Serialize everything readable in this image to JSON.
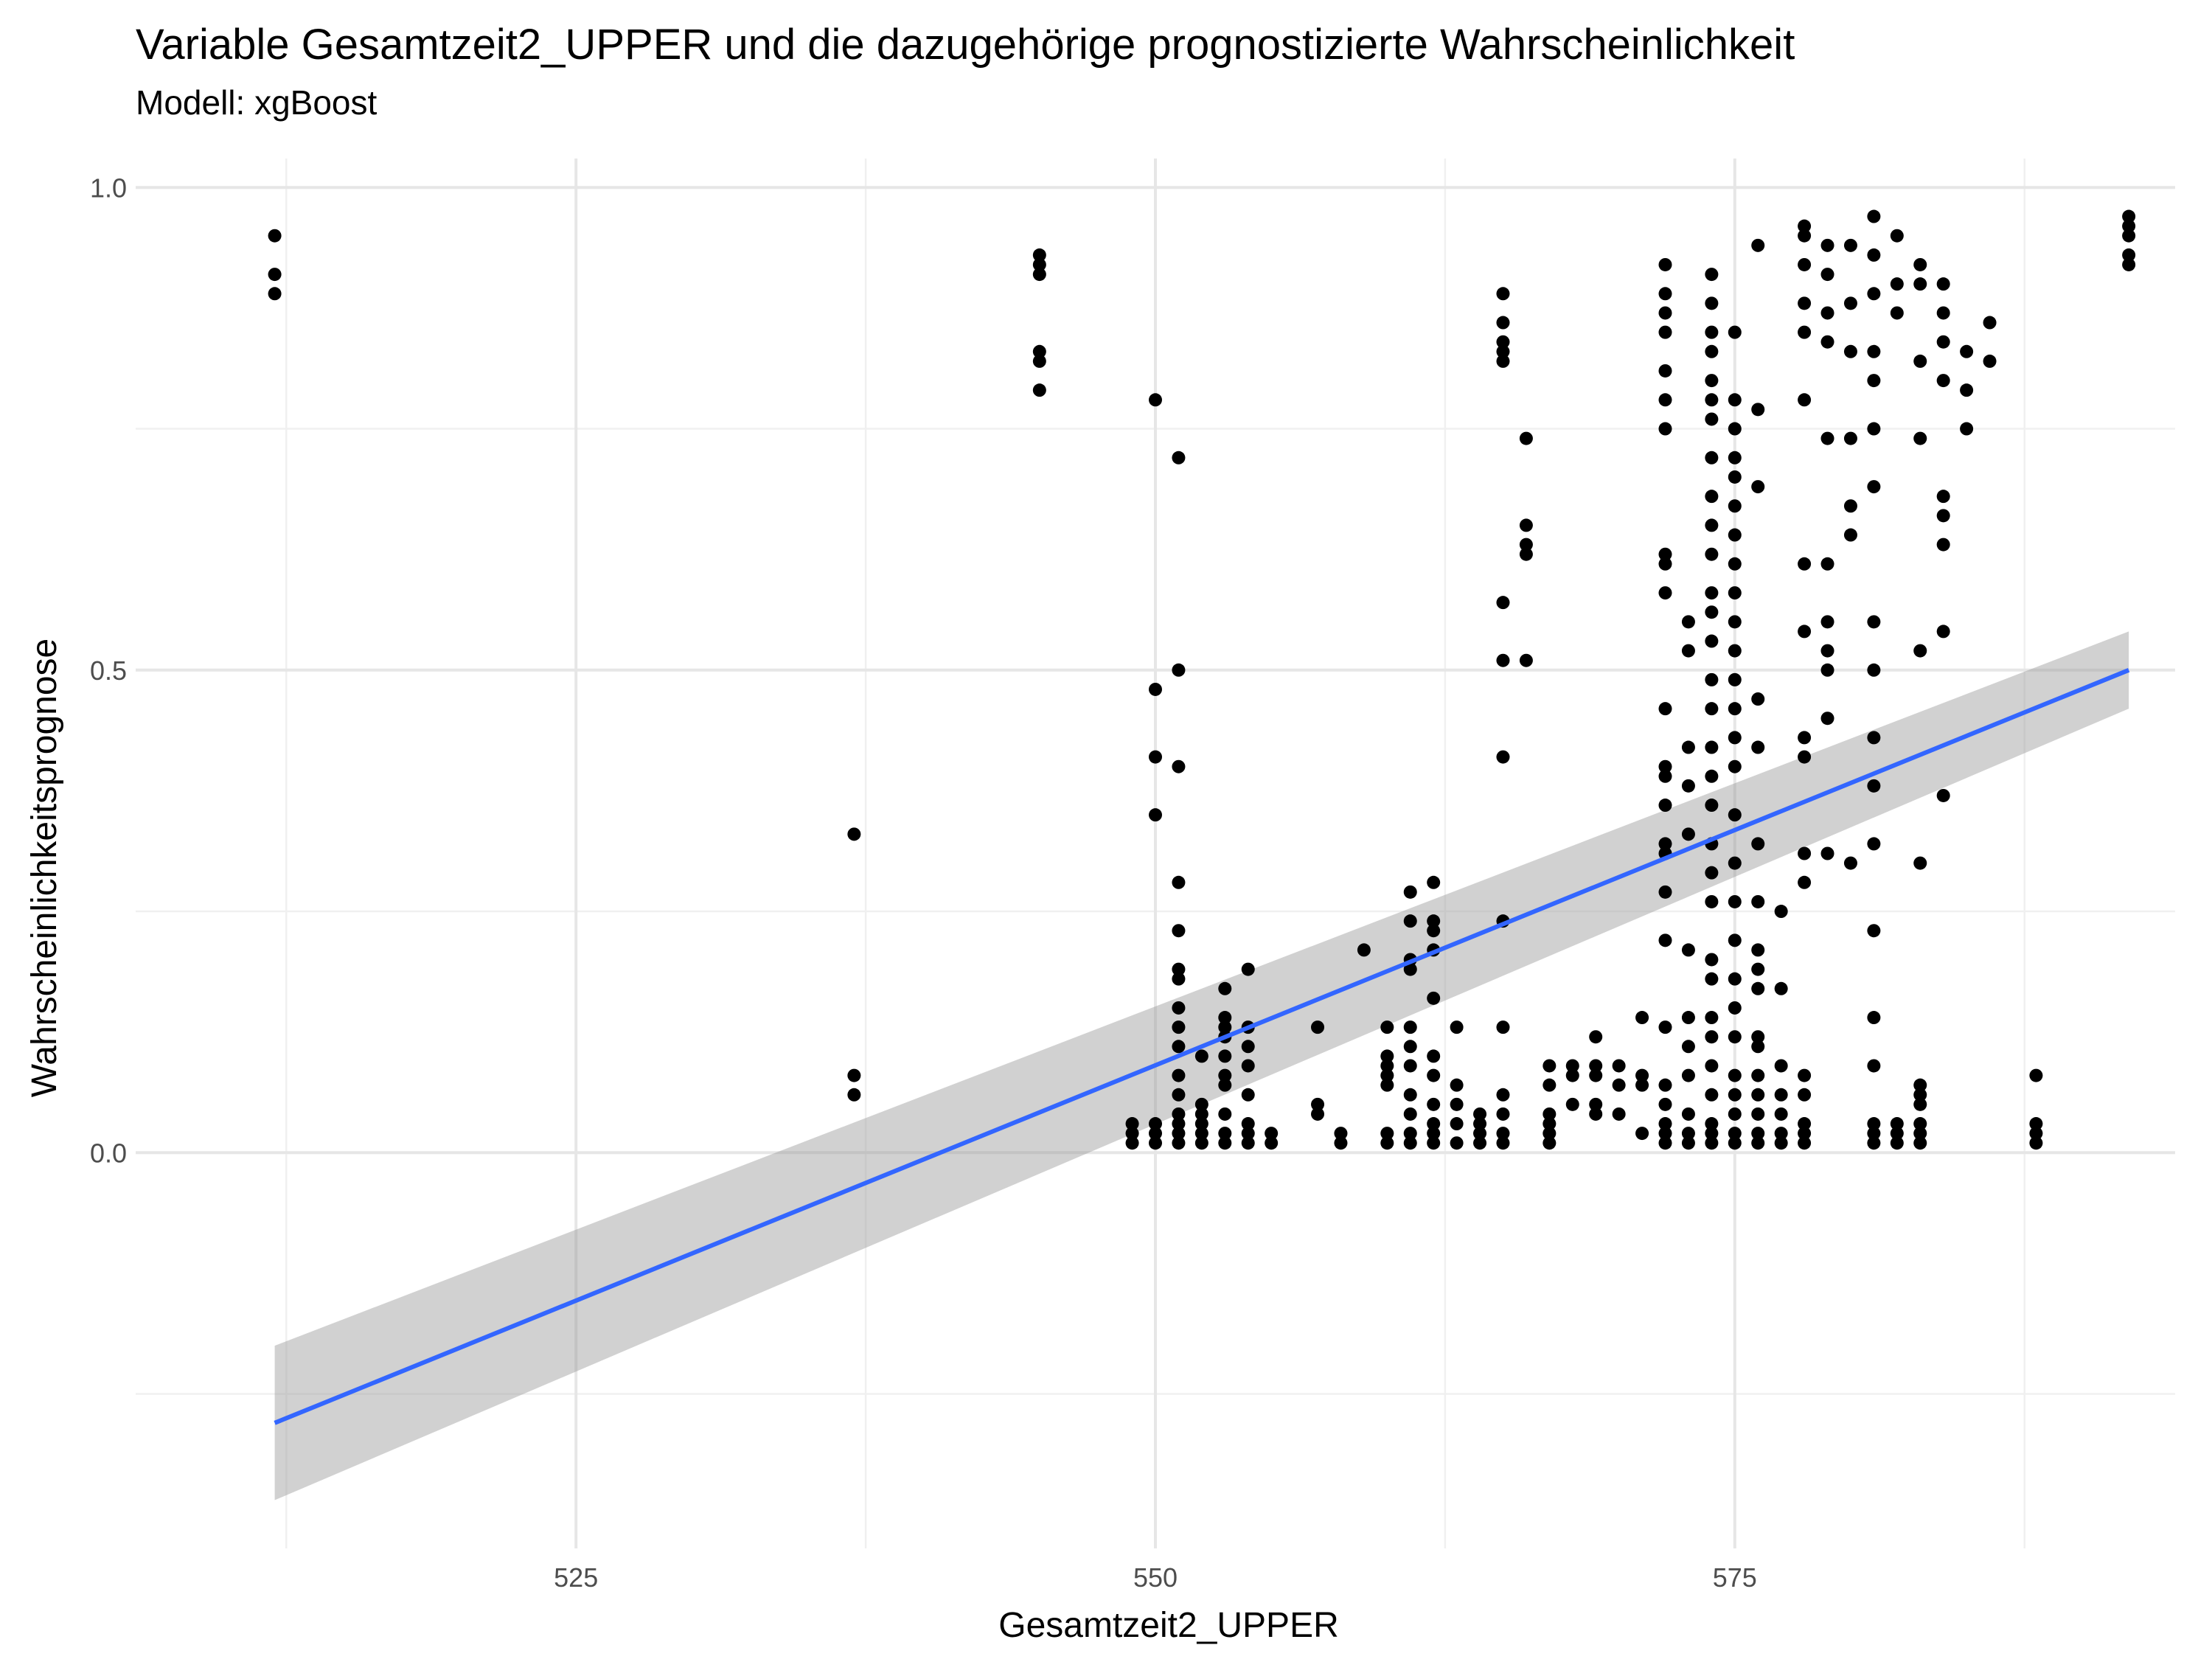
{
  "chart_data": {
    "type": "scatter",
    "title": "Variable Gesamtzeit2_UPPER und die dazugehörige prognostizierte Wahrscheinlichkeit",
    "subtitle": "Modell: xgBoost",
    "xlabel": "Gesamtzeit2_UPPER",
    "ylabel": "Wahrscheinlichkeitsprognose",
    "xlim": [
      506,
      594
    ],
    "ylim": [
      -0.41,
      1.03
    ],
    "x_ticks": [
      525,
      550,
      575
    ],
    "x_tick_labels": [
      "525",
      "550",
      "575"
    ],
    "y_ticks": [
      0.0,
      0.5,
      1.0
    ],
    "y_tick_labels": [
      "0.0",
      "0.5",
      "1.0"
    ],
    "grid": true,
    "legend": "none",
    "point_color": "#000000",
    "trend": {
      "method": "linear",
      "color": "#3366FF",
      "ribbon_color": "#999999",
      "x": [
        512,
        592
      ],
      "y": [
        -0.28,
        0.5
      ],
      "ci_upper": [
        -0.2,
        0.54
      ],
      "ci_lower": [
        -0.36,
        0.46
      ]
    },
    "points": [
      [
        512,
        0.95
      ],
      [
        512,
        0.91
      ],
      [
        512,
        0.89
      ],
      [
        537,
        0.33
      ],
      [
        537,
        0.08
      ],
      [
        537,
        0.06
      ],
      [
        545,
        0.93
      ],
      [
        545,
        0.92
      ],
      [
        545,
        0.91
      ],
      [
        545,
        0.83
      ],
      [
        545,
        0.82
      ],
      [
        545,
        0.79
      ],
      [
        549,
        0.03
      ],
      [
        549,
        0.02
      ],
      [
        549,
        0.01
      ],
      [
        550,
        0.78
      ],
      [
        550,
        0.48
      ],
      [
        550,
        0.41
      ],
      [
        550,
        0.35
      ],
      [
        550,
        0.03
      ],
      [
        550,
        0.02
      ],
      [
        550,
        0.01
      ],
      [
        551,
        0.72
      ],
      [
        551,
        0.5
      ],
      [
        551,
        0.4
      ],
      [
        551,
        0.28
      ],
      [
        551,
        0.23
      ],
      [
        551,
        0.19
      ],
      [
        551,
        0.18
      ],
      [
        551,
        0.15
      ],
      [
        551,
        0.13
      ],
      [
        551,
        0.11
      ],
      [
        551,
        0.08
      ],
      [
        551,
        0.06
      ],
      [
        551,
        0.04
      ],
      [
        551,
        0.03
      ],
      [
        551,
        0.02
      ],
      [
        551,
        0.01
      ],
      [
        552,
        0.1
      ],
      [
        552,
        0.05
      ],
      [
        552,
        0.04
      ],
      [
        552,
        0.03
      ],
      [
        552,
        0.02
      ],
      [
        552,
        0.01
      ],
      [
        553,
        0.17
      ],
      [
        553,
        0.14
      ],
      [
        553,
        0.13
      ],
      [
        553,
        0.12
      ],
      [
        553,
        0.1
      ],
      [
        553,
        0.08
      ],
      [
        553,
        0.07
      ],
      [
        553,
        0.04
      ],
      [
        553,
        0.02
      ],
      [
        553,
        0.01
      ],
      [
        554,
        0.19
      ],
      [
        554,
        0.13
      ],
      [
        554,
        0.11
      ],
      [
        554,
        0.09
      ],
      [
        554,
        0.06
      ],
      [
        554,
        0.03
      ],
      [
        554,
        0.02
      ],
      [
        554,
        0.01
      ],
      [
        555,
        0.02
      ],
      [
        555,
        0.01
      ],
      [
        557,
        0.13
      ],
      [
        557,
        0.05
      ],
      [
        557,
        0.04
      ],
      [
        558,
        0.02
      ],
      [
        558,
        0.01
      ],
      [
        559,
        0.21
      ],
      [
        560,
        0.13
      ],
      [
        560,
        0.1
      ],
      [
        560,
        0.09
      ],
      [
        560,
        0.08
      ],
      [
        560,
        0.07
      ],
      [
        560,
        0.02
      ],
      [
        560,
        0.01
      ],
      [
        561,
        0.27
      ],
      [
        561,
        0.24
      ],
      [
        561,
        0.2
      ],
      [
        561,
        0.19
      ],
      [
        561,
        0.13
      ],
      [
        561,
        0.11
      ],
      [
        561,
        0.09
      ],
      [
        561,
        0.06
      ],
      [
        561,
        0.04
      ],
      [
        561,
        0.02
      ],
      [
        561,
        0.01
      ],
      [
        562,
        0.28
      ],
      [
        562,
        0.24
      ],
      [
        562,
        0.23
      ],
      [
        562,
        0.21
      ],
      [
        562,
        0.16
      ],
      [
        562,
        0.1
      ],
      [
        562,
        0.08
      ],
      [
        562,
        0.05
      ],
      [
        562,
        0.03
      ],
      [
        562,
        0.02
      ],
      [
        562,
        0.01
      ],
      [
        563,
        0.13
      ],
      [
        563,
        0.07
      ],
      [
        563,
        0.05
      ],
      [
        563,
        0.03
      ],
      [
        563,
        0.01
      ],
      [
        564,
        0.04
      ],
      [
        564,
        0.03
      ],
      [
        564,
        0.02
      ],
      [
        564,
        0.01
      ],
      [
        565,
        0.89
      ],
      [
        565,
        0.86
      ],
      [
        565,
        0.84
      ],
      [
        565,
        0.83
      ],
      [
        565,
        0.82
      ],
      [
        565,
        0.57
      ],
      [
        565,
        0.51
      ],
      [
        565,
        0.41
      ],
      [
        565,
        0.24
      ],
      [
        565,
        0.13
      ],
      [
        565,
        0.06
      ],
      [
        565,
        0.04
      ],
      [
        565,
        0.02
      ],
      [
        565,
        0.01
      ],
      [
        566,
        0.74
      ],
      [
        566,
        0.65
      ],
      [
        566,
        0.63
      ],
      [
        566,
        0.62
      ],
      [
        566,
        0.51
      ],
      [
        567,
        0.09
      ],
      [
        567,
        0.07
      ],
      [
        567,
        0.04
      ],
      [
        567,
        0.03
      ],
      [
        567,
        0.02
      ],
      [
        567,
        0.01
      ],
      [
        568,
        0.09
      ],
      [
        568,
        0.08
      ],
      [
        568,
        0.05
      ],
      [
        569,
        0.12
      ],
      [
        569,
        0.09
      ],
      [
        569,
        0.08
      ],
      [
        569,
        0.05
      ],
      [
        569,
        0.04
      ],
      [
        570,
        0.09
      ],
      [
        570,
        0.07
      ],
      [
        570,
        0.04
      ],
      [
        571,
        0.14
      ],
      [
        571,
        0.08
      ],
      [
        571,
        0.07
      ],
      [
        571,
        0.02
      ],
      [
        572,
        0.92
      ],
      [
        572,
        0.89
      ],
      [
        572,
        0.87
      ],
      [
        572,
        0.85
      ],
      [
        572,
        0.81
      ],
      [
        572,
        0.78
      ],
      [
        572,
        0.75
      ],
      [
        572,
        0.62
      ],
      [
        572,
        0.61
      ],
      [
        572,
        0.58
      ],
      [
        572,
        0.46
      ],
      [
        572,
        0.4
      ],
      [
        572,
        0.39
      ],
      [
        572,
        0.36
      ],
      [
        572,
        0.32
      ],
      [
        572,
        0.31
      ],
      [
        572,
        0.27
      ],
      [
        572,
        0.22
      ],
      [
        572,
        0.13
      ],
      [
        572,
        0.07
      ],
      [
        572,
        0.05
      ],
      [
        572,
        0.03
      ],
      [
        572,
        0.02
      ],
      [
        572,
        0.01
      ],
      [
        573,
        0.55
      ],
      [
        573,
        0.52
      ],
      [
        573,
        0.42
      ],
      [
        573,
        0.38
      ],
      [
        573,
        0.33
      ],
      [
        573,
        0.21
      ],
      [
        573,
        0.14
      ],
      [
        573,
        0.11
      ],
      [
        573,
        0.08
      ],
      [
        573,
        0.04
      ],
      [
        573,
        0.02
      ],
      [
        573,
        0.01
      ],
      [
        574,
        0.91
      ],
      [
        574,
        0.88
      ],
      [
        574,
        0.85
      ],
      [
        574,
        0.83
      ],
      [
        574,
        0.8
      ],
      [
        574,
        0.78
      ],
      [
        574,
        0.76
      ],
      [
        574,
        0.72
      ],
      [
        574,
        0.68
      ],
      [
        574,
        0.65
      ],
      [
        574,
        0.62
      ],
      [
        574,
        0.58
      ],
      [
        574,
        0.56
      ],
      [
        574,
        0.53
      ],
      [
        574,
        0.49
      ],
      [
        574,
        0.46
      ],
      [
        574,
        0.42
      ],
      [
        574,
        0.39
      ],
      [
        574,
        0.36
      ],
      [
        574,
        0.32
      ],
      [
        574,
        0.29
      ],
      [
        574,
        0.26
      ],
      [
        574,
        0.2
      ],
      [
        574,
        0.18
      ],
      [
        574,
        0.14
      ],
      [
        574,
        0.12
      ],
      [
        574,
        0.09
      ],
      [
        574,
        0.06
      ],
      [
        574,
        0.03
      ],
      [
        574,
        0.02
      ],
      [
        574,
        0.01
      ],
      [
        575,
        0.85
      ],
      [
        575,
        0.78
      ],
      [
        575,
        0.75
      ],
      [
        575,
        0.72
      ],
      [
        575,
        0.7
      ],
      [
        575,
        0.67
      ],
      [
        575,
        0.64
      ],
      [
        575,
        0.61
      ],
      [
        575,
        0.58
      ],
      [
        575,
        0.55
      ],
      [
        575,
        0.52
      ],
      [
        575,
        0.49
      ],
      [
        575,
        0.46
      ],
      [
        575,
        0.43
      ],
      [
        575,
        0.4
      ],
      [
        575,
        0.35
      ],
      [
        575,
        0.3
      ],
      [
        575,
        0.26
      ],
      [
        575,
        0.22
      ],
      [
        575,
        0.18
      ],
      [
        575,
        0.15
      ],
      [
        575,
        0.12
      ],
      [
        575,
        0.08
      ],
      [
        575,
        0.06
      ],
      [
        575,
        0.04
      ],
      [
        575,
        0.02
      ],
      [
        575,
        0.01
      ],
      [
        576,
        0.94
      ],
      [
        576,
        0.77
      ],
      [
        576,
        0.69
      ],
      [
        576,
        0.47
      ],
      [
        576,
        0.42
      ],
      [
        576,
        0.32
      ],
      [
        576,
        0.26
      ],
      [
        576,
        0.21
      ],
      [
        576,
        0.19
      ],
      [
        576,
        0.17
      ],
      [
        576,
        0.12
      ],
      [
        576,
        0.11
      ],
      [
        576,
        0.08
      ],
      [
        576,
        0.06
      ],
      [
        576,
        0.04
      ],
      [
        576,
        0.02
      ],
      [
        576,
        0.01
      ],
      [
        577,
        0.25
      ],
      [
        577,
        0.17
      ],
      [
        577,
        0.09
      ],
      [
        577,
        0.06
      ],
      [
        577,
        0.04
      ],
      [
        577,
        0.02
      ],
      [
        577,
        0.01
      ],
      [
        578,
        0.96
      ],
      [
        578,
        0.95
      ],
      [
        578,
        0.92
      ],
      [
        578,
        0.88
      ],
      [
        578,
        0.85
      ],
      [
        578,
        0.78
      ],
      [
        578,
        0.61
      ],
      [
        578,
        0.54
      ],
      [
        578,
        0.43
      ],
      [
        578,
        0.41
      ],
      [
        578,
        0.31
      ],
      [
        578,
        0.28
      ],
      [
        578,
        0.08
      ],
      [
        578,
        0.06
      ],
      [
        578,
        0.03
      ],
      [
        578,
        0.02
      ],
      [
        578,
        0.01
      ],
      [
        579,
        0.94
      ],
      [
        579,
        0.91
      ],
      [
        579,
        0.87
      ],
      [
        579,
        0.84
      ],
      [
        579,
        0.74
      ],
      [
        579,
        0.61
      ],
      [
        579,
        0.55
      ],
      [
        579,
        0.52
      ],
      [
        579,
        0.5
      ],
      [
        579,
        0.45
      ],
      [
        579,
        0.31
      ],
      [
        580,
        0.94
      ],
      [
        580,
        0.88
      ],
      [
        580,
        0.83
      ],
      [
        580,
        0.74
      ],
      [
        580,
        0.67
      ],
      [
        580,
        0.64
      ],
      [
        580,
        0.3
      ],
      [
        581,
        0.97
      ],
      [
        581,
        0.93
      ],
      [
        581,
        0.89
      ],
      [
        581,
        0.83
      ],
      [
        581,
        0.8
      ],
      [
        581,
        0.75
      ],
      [
        581,
        0.69
      ],
      [
        581,
        0.55
      ],
      [
        581,
        0.5
      ],
      [
        581,
        0.43
      ],
      [
        581,
        0.38
      ],
      [
        581,
        0.32
      ],
      [
        581,
        0.23
      ],
      [
        581,
        0.14
      ],
      [
        581,
        0.09
      ],
      [
        581,
        0.03
      ],
      [
        581,
        0.02
      ],
      [
        581,
        0.01
      ],
      [
        582,
        0.95
      ],
      [
        582,
        0.9
      ],
      [
        582,
        0.87
      ],
      [
        582,
        0.03
      ],
      [
        582,
        0.02
      ],
      [
        582,
        0.01
      ],
      [
        583,
        0.92
      ],
      [
        583,
        0.9
      ],
      [
        583,
        0.82
      ],
      [
        583,
        0.74
      ],
      [
        583,
        0.52
      ],
      [
        583,
        0.3
      ],
      [
        583,
        0.07
      ],
      [
        583,
        0.06
      ],
      [
        583,
        0.05
      ],
      [
        583,
        0.03
      ],
      [
        583,
        0.02
      ],
      [
        583,
        0.01
      ],
      [
        584,
        0.9
      ],
      [
        584,
        0.87
      ],
      [
        584,
        0.84
      ],
      [
        584,
        0.8
      ],
      [
        584,
        0.68
      ],
      [
        584,
        0.66
      ],
      [
        584,
        0.63
      ],
      [
        584,
        0.54
      ],
      [
        584,
        0.37
      ],
      [
        585,
        0.83
      ],
      [
        585,
        0.79
      ],
      [
        585,
        0.75
      ],
      [
        586,
        0.86
      ],
      [
        586,
        0.82
      ],
      [
        588,
        0.08
      ],
      [
        588,
        0.03
      ],
      [
        588,
        0.02
      ],
      [
        588,
        0.01
      ],
      [
        592,
        0.97
      ],
      [
        592,
        0.96
      ],
      [
        592,
        0.95
      ],
      [
        592,
        0.93
      ],
      [
        592,
        0.92
      ]
    ]
  }
}
